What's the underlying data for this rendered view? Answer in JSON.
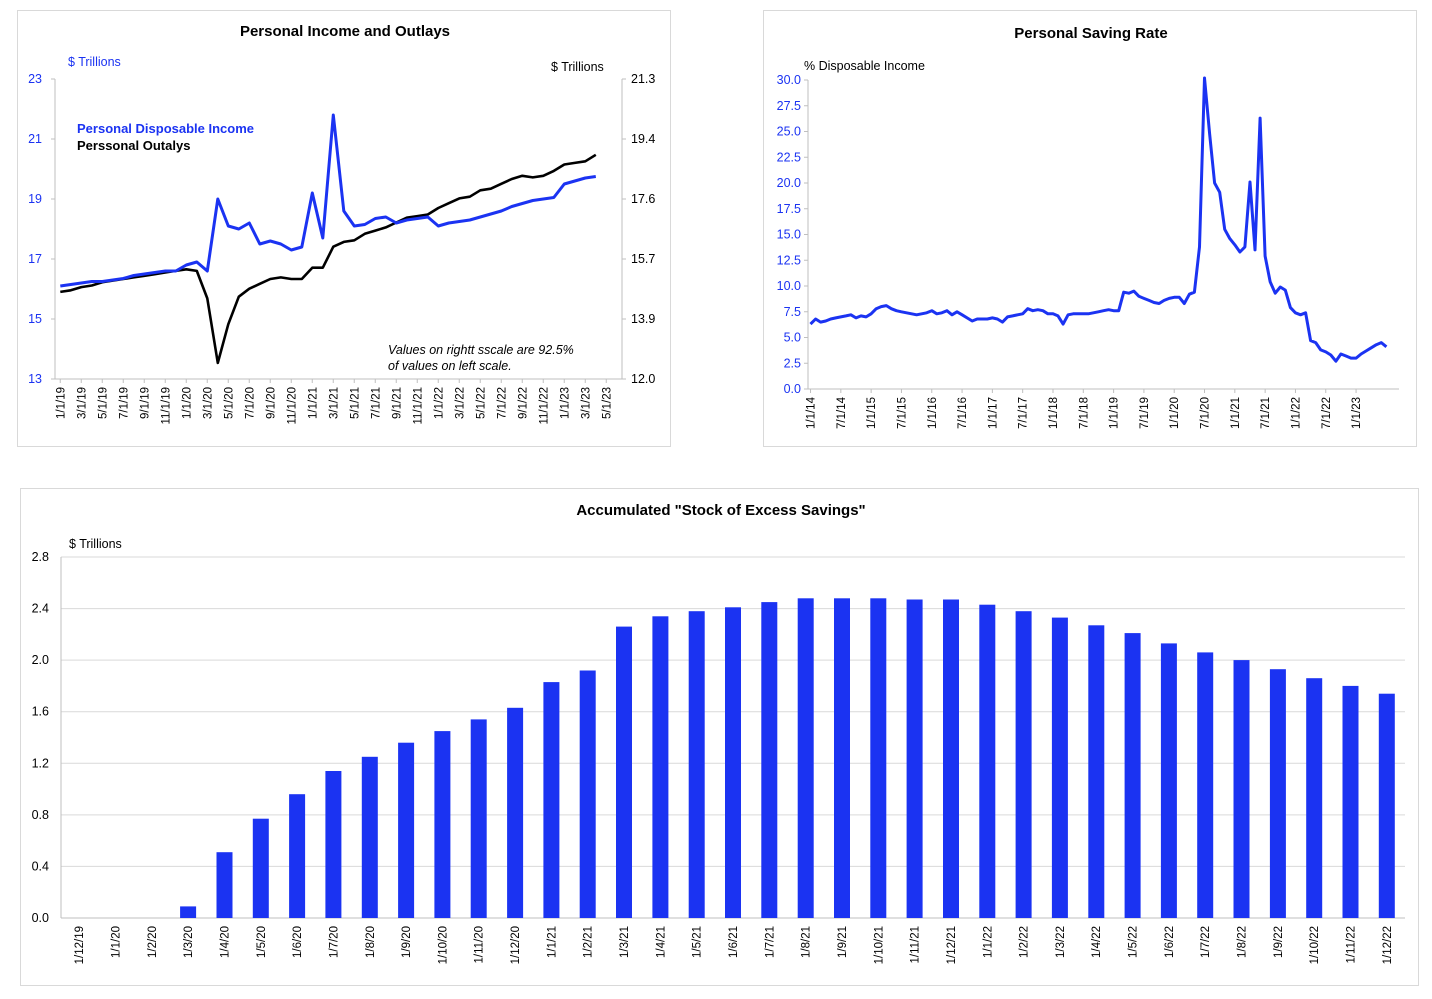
{
  "colors": {
    "blue": "#1b33f2",
    "black": "#000000",
    "grid": "#d9d9d9",
    "axis": "#bfbfbf"
  },
  "charts": {
    "income_outlays": {
      "title": "Personal Income and Outlays",
      "left_unit": "$ Trillions",
      "right_unit": "$ Trillions",
      "legend_income": "Personal Disposable Income",
      "legend_outlays": "Perssonal Outalys",
      "note_line1": "Values on rightt sscale are 92.5%",
      "note_line2": "of values on left scale.",
      "left_ticks": [
        "23",
        "21",
        "19",
        "17",
        "15",
        "13"
      ],
      "right_ticks": [
        "21.3",
        "19.4",
        "17.6",
        "15.7",
        "13.9",
        "12.0"
      ],
      "x_ticks": [
        "1/1/19",
        "3/1/19",
        "5/1/19",
        "7/1/19",
        "9/1/19",
        "11/1/19",
        "1/1/20",
        "3/1/20",
        "5/1/20",
        "7/1/20",
        "9/1/20",
        "11/1/20",
        "1/1/21",
        "3/1/21",
        "5/1/21",
        "7/1/21",
        "9/1/21",
        "11/1/21",
        "1/1/22",
        "3/1/22",
        "5/1/22",
        "7/1/22",
        "9/1/22",
        "11/1/22",
        "1/1/23",
        "3/1/23",
        "5/1/23"
      ]
    },
    "saving_rate": {
      "title": "Personal Saving Rate",
      "unit": "% Disposable Income",
      "y_ticks": [
        "30.0",
        "27.5",
        "25.0",
        "22.5",
        "20.0",
        "17.5",
        "15.0",
        "12.5",
        "10.0",
        "7.5",
        "5.0",
        "2.5",
        "0.0"
      ],
      "x_ticks": [
        "1/1/14",
        "7/1/14",
        "1/1/15",
        "7/1/15",
        "1/1/16",
        "7/1/16",
        "1/1/17",
        "7/1/17",
        "1/1/18",
        "7/1/18",
        "1/1/19",
        "7/1/19",
        "1/1/20",
        "7/1/20",
        "1/1/21",
        "7/1/21",
        "1/1/22",
        "7/1/22",
        "1/1/23"
      ]
    },
    "excess_savings": {
      "title": "Accumulated \"Stock of Excess Savings\"",
      "unit": "$ Trillions",
      "y_ticks": [
        "2.8",
        "2.4",
        "2.0",
        "1.6",
        "1.2",
        "0.8",
        "0.4",
        "0.0"
      ]
    }
  },
  "chart_data": [
    {
      "type": "line",
      "title": "Personal Income and Outlays",
      "x": [
        "1/1/19",
        "2/1/19",
        "3/1/19",
        "4/1/19",
        "5/1/19",
        "6/1/19",
        "7/1/19",
        "8/1/19",
        "9/1/19",
        "10/1/19",
        "11/1/19",
        "12/1/19",
        "1/1/20",
        "2/1/20",
        "3/1/20",
        "4/1/20",
        "5/1/20",
        "6/1/20",
        "7/1/20",
        "8/1/20",
        "9/1/20",
        "10/1/20",
        "11/1/20",
        "12/1/20",
        "1/1/21",
        "2/1/21",
        "3/1/21",
        "4/1/21",
        "5/1/21",
        "6/1/21",
        "7/1/21",
        "8/1/21",
        "9/1/21",
        "10/1/21",
        "11/1/21",
        "12/1/21",
        "1/1/22",
        "2/1/22",
        "3/1/22",
        "4/1/22",
        "5/1/22",
        "6/1/22",
        "7/1/22",
        "8/1/22",
        "9/1/22",
        "10/1/22",
        "11/1/22",
        "12/1/22",
        "1/1/23",
        "2/1/23",
        "3/1/23",
        "4/1/23"
      ],
      "ylim_left": [
        13,
        23
      ],
      "ylim_right": [
        12.0,
        21.3
      ],
      "series": [
        {
          "name": "Personal Disposable Income",
          "axis": "left",
          "values": [
            16.1,
            16.15,
            16.2,
            16.25,
            16.25,
            16.3,
            16.35,
            16.45,
            16.5,
            16.55,
            16.6,
            16.6,
            16.8,
            16.9,
            16.6,
            19.0,
            18.1,
            18.0,
            18.2,
            17.5,
            17.6,
            17.5,
            17.3,
            17.4,
            19.2,
            17.7,
            21.8,
            18.6,
            18.1,
            18.15,
            18.35,
            18.4,
            18.2,
            18.3,
            18.35,
            18.4,
            18.1,
            18.2,
            18.25,
            18.3,
            18.4,
            18.5,
            18.6,
            18.75,
            18.85,
            18.95,
            19.0,
            19.05,
            19.5,
            19.6,
            19.7,
            19.75
          ]
        },
        {
          "name": "Perssonal Outalys",
          "axis": "right",
          "values": [
            14.7,
            14.75,
            14.85,
            14.9,
            15.0,
            15.05,
            15.1,
            15.15,
            15.2,
            15.25,
            15.3,
            15.35,
            15.4,
            15.35,
            14.5,
            12.5,
            13.7,
            14.55,
            14.8,
            14.95,
            15.1,
            15.15,
            15.1,
            15.1,
            15.45,
            15.45,
            16.1,
            16.25,
            16.3,
            16.5,
            16.6,
            16.7,
            16.85,
            17.0,
            17.05,
            17.1,
            17.3,
            17.45,
            17.6,
            17.65,
            17.85,
            17.9,
            18.05,
            18.2,
            18.3,
            18.25,
            18.3,
            18.45,
            18.65,
            18.7,
            18.75,
            18.95
          ]
        }
      ]
    },
    {
      "type": "line",
      "title": "Personal Saving Rate",
      "ylabel": "% Disposable Income",
      "ylim": [
        0,
        30
      ],
      "x_start": "1/1/14",
      "x_end": "5/1/23",
      "series": [
        {
          "values": [
            6.3,
            6.8,
            6.5,
            6.6,
            6.8,
            6.9,
            7.0,
            7.1,
            7.2,
            6.9,
            7.1,
            7.0,
            7.3,
            7.8,
            8.0,
            8.1,
            7.8,
            7.6,
            7.5,
            7.4,
            7.3,
            7.2,
            7.3,
            7.4,
            7.6,
            7.3,
            7.4,
            7.6,
            7.2,
            7.5,
            7.2,
            6.9,
            6.6,
            6.8,
            6.8,
            6.8,
            6.9,
            6.8,
            6.5,
            7.0,
            7.1,
            7.2,
            7.3,
            7.8,
            7.6,
            7.7,
            7.6,
            7.3,
            7.3,
            7.1,
            6.3,
            7.2,
            7.3,
            7.3,
            7.3,
            7.3,
            7.4,
            7.5,
            7.6,
            7.7,
            7.6,
            7.6,
            9.4,
            9.3,
            9.5,
            9.0,
            8.8,
            8.6,
            8.4,
            8.3,
            8.6,
            8.8,
            8.9,
            8.9,
            8.3,
            9.2,
            9.4,
            13.8,
            31.8,
            24.8,
            20.0,
            19.1,
            15.5,
            14.6,
            14.0,
            13.3,
            13.8,
            20.1,
            13.5,
            26.3,
            12.9,
            10.4,
            9.3,
            9.9,
            9.6,
            7.9,
            7.4,
            7.2,
            7.4,
            4.7,
            4.5,
            3.8,
            3.6,
            3.3,
            2.7,
            3.4,
            3.2,
            3.0,
            3.0,
            3.4,
            3.7,
            4.0,
            4.3,
            4.5,
            4.1
          ]
        }
      ]
    },
    {
      "type": "bar",
      "title": "Accumulated \"Stock of Excess Savings\"",
      "ylabel": "$ Trillions",
      "ylim": [
        0,
        2.8
      ],
      "categories": [
        "1/12/19",
        "1/1/20",
        "1/2/20",
        "1/3/20",
        "1/4/20",
        "1/5/20",
        "1/6/20",
        "1/7/20",
        "1/8/20",
        "1/9/20",
        "1/10/20",
        "1/11/20",
        "1/12/20",
        "1/1/21",
        "1/2/21",
        "1/3/21",
        "1/4/21",
        "1/5/21",
        "1/6/21",
        "1/7/21",
        "1/8/21",
        "1/9/21",
        "1/10/21",
        "1/11/21",
        "1/12/21",
        "1/1/22",
        "1/2/22",
        "1/3/22",
        "1/4/22",
        "1/5/22",
        "1/6/22",
        "1/7/22",
        "1/8/22",
        "1/9/22",
        "1/10/22",
        "1/11/22",
        "1/12/22"
      ],
      "values": [
        0,
        0,
        0,
        0.09,
        0.51,
        0.77,
        0.96,
        1.14,
        1.25,
        1.36,
        1.45,
        1.54,
        1.63,
        1.83,
        1.92,
        2.26,
        2.34,
        2.38,
        2.41,
        2.45,
        2.48,
        2.48,
        2.48,
        2.47,
        2.47,
        2.43,
        2.38,
        2.33,
        2.27,
        2.21,
        2.13,
        2.06,
        2.0,
        1.93,
        1.86,
        1.8,
        1.74
      ]
    }
  ]
}
